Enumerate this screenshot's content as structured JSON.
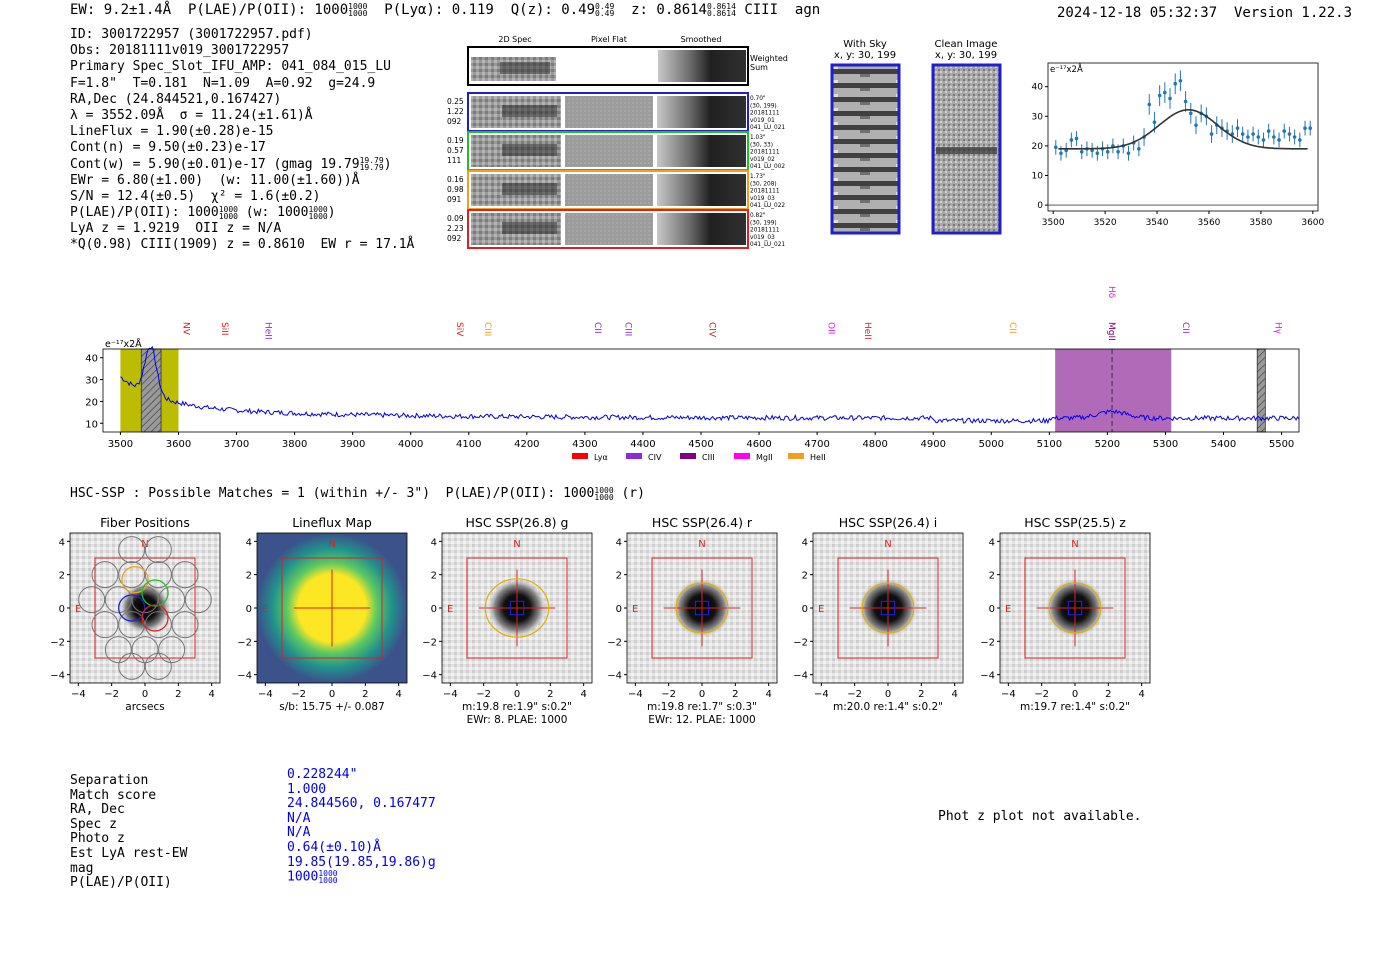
{
  "header": {
    "left": "EW: 9.2±1.4Å  P(LAE)/P(OII): 1000",
    "left_frac": [
      "1000",
      "1000"
    ],
    "left2": "  P(Lyα): 0.119  Q(z): 0.49",
    "q_frac": [
      "0.49",
      "0.49"
    ],
    "left3": "  z: 0.8614",
    "z_frac": [
      "0.8614",
      "0.8614"
    ],
    "left4": " CIII  agn",
    "right": "2024-12-18 05:32:37  Version 1.22.3"
  },
  "info": [
    "ID: 3001722957 (3001722957.pdf)",
    "Obs: 20181111v019_3001722957",
    "Primary Spec_Slot_IFU_AMP: 041_084_015_LU",
    "F=1.8\"  T=0.181  N=1.09  A=0.92  g=24.9",
    "RA,Dec (24.844521,0.167427)",
    "λ = 3552.09Å  σ = 11.24(±1.61)Å",
    "LineFlux = 1.90(±0.28)e-15",
    "Cont(n) = 9.50(±0.23)e-17",
    "Cont(w) = 5.90(±0.01)e-17 (gmag 19.79",
    "EWr = 6.80(±1.00)  (w: 11.00(±1.60))Å",
    "S/N = 12.4(±0.5)  χ² = 1.6(±0.2)",
    "P(LAE)/P(OII): 1000",
    "LyA z = 1.9219  OII z = N/A",
    "*Q(0.98) CIII(1909) z = 0.8610  EW r = 17.1Å"
  ],
  "info_extra": {
    "gmag_frac": [
      "19.79",
      "19.79"
    ],
    "gmag_close": ")",
    "plae_frac": [
      "1000",
      "1000"
    ],
    "plae_w": " (w: 1000",
    "plae_w_frac": [
      "1000",
      "1000"
    ],
    "plae_close": ")"
  },
  "cutouts": {
    "headers": [
      "2D Spec",
      "Pixel Flat",
      "Smoothed"
    ],
    "weighted_label": [
      "Weighted",
      "Sum"
    ],
    "rows": [
      {
        "left": [
          "0.25",
          "1.22",
          "092"
        ],
        "right": [
          "0.70\"",
          "(30, 199)",
          "20181111",
          "v019_01",
          "041_LU_021"
        ],
        "color": "#1f1fd0"
      },
      {
        "left": [
          "0.19",
          "0.57",
          "111"
        ],
        "right": [
          "1.03\"",
          "(30, 33)",
          "20181111",
          "v019_02",
          "041_LU_002"
        ],
        "color": "#22c022"
      },
      {
        "left": [
          "0.16",
          "0.98",
          "091"
        ],
        "right": [
          "1.73\"",
          "(30, 208)",
          "20181111",
          "v019_03",
          "041_LU_022"
        ],
        "color": "#f0a020"
      },
      {
        "left": [
          "0.09",
          "2.23",
          "092"
        ],
        "right": [
          "0.82\"",
          "(30, 199)",
          "20181111",
          "v019_03",
          "041_LU_021"
        ],
        "color": "#e02020"
      }
    ]
  },
  "sky": {
    "with_sky": [
      "With Sky",
      "x, y: 30, 199"
    ],
    "clean": [
      "Clean Image",
      "x, y: 30, 199"
    ]
  },
  "chart_data": [
    {
      "type": "scatter",
      "title": "",
      "ylabel_unit": "e⁻¹⁷x2Å",
      "xlim": [
        3498,
        3602
      ],
      "ylim": [
        -2,
        48
      ],
      "xticks": [
        3500,
        3520,
        3540,
        3560,
        3580,
        3600
      ],
      "yticks": [
        0,
        10,
        20,
        30,
        40
      ],
      "points": [
        {
          "x": 3501,
          "y": 19.5,
          "e": 2.5
        },
        {
          "x": 3503,
          "y": 17.5,
          "e": 2.5
        },
        {
          "x": 3505,
          "y": 18.5,
          "e": 2.5
        },
        {
          "x": 3507,
          "y": 22,
          "e": 2.5
        },
        {
          "x": 3509,
          "y": 22.5,
          "e": 2.5
        },
        {
          "x": 3511,
          "y": 18,
          "e": 2.5
        },
        {
          "x": 3513,
          "y": 19,
          "e": 2.5
        },
        {
          "x": 3515,
          "y": 18.5,
          "e": 2.5
        },
        {
          "x": 3517,
          "y": 17.5,
          "e": 2.5
        },
        {
          "x": 3519,
          "y": 19,
          "e": 2.5
        },
        {
          "x": 3521,
          "y": 18,
          "e": 2.5
        },
        {
          "x": 3523,
          "y": 20,
          "e": 2.5
        },
        {
          "x": 3525,
          "y": 18,
          "e": 2.5
        },
        {
          "x": 3527,
          "y": 20,
          "e": 2.5
        },
        {
          "x": 3529,
          "y": 17.5,
          "e": 2.5
        },
        {
          "x": 3531,
          "y": 21,
          "e": 2.5
        },
        {
          "x": 3533,
          "y": 19,
          "e": 2.5
        },
        {
          "x": 3535,
          "y": 23,
          "e": 3
        },
        {
          "x": 3537,
          "y": 34,
          "e": 3.5
        },
        {
          "x": 3539,
          "y": 28,
          "e": 3.5
        },
        {
          "x": 3541,
          "y": 37,
          "e": 3.5
        },
        {
          "x": 3543,
          "y": 38,
          "e": 3.5
        },
        {
          "x": 3545,
          "y": 36,
          "e": 3.5
        },
        {
          "x": 3547,
          "y": 41,
          "e": 3.5
        },
        {
          "x": 3549,
          "y": 42,
          "e": 3.5
        },
        {
          "x": 3551,
          "y": 35,
          "e": 3.5
        },
        {
          "x": 3553,
          "y": 31,
          "e": 3.5
        },
        {
          "x": 3555,
          "y": 27,
          "e": 3
        },
        {
          "x": 3557,
          "y": 31,
          "e": 3
        },
        {
          "x": 3559,
          "y": 30,
          "e": 3
        },
        {
          "x": 3561,
          "y": 24,
          "e": 3
        },
        {
          "x": 3563,
          "y": 27,
          "e": 3
        },
        {
          "x": 3565,
          "y": 26,
          "e": 3
        },
        {
          "x": 3567,
          "y": 25,
          "e": 3
        },
        {
          "x": 3569,
          "y": 24,
          "e": 3
        },
        {
          "x": 3571,
          "y": 26,
          "e": 3
        },
        {
          "x": 3573,
          "y": 24,
          "e": 2.5
        },
        {
          "x": 3575,
          "y": 23,
          "e": 2.5
        },
        {
          "x": 3577,
          "y": 24,
          "e": 2.5
        },
        {
          "x": 3579,
          "y": 23,
          "e": 2.5
        },
        {
          "x": 3581,
          "y": 22,
          "e": 2.5
        },
        {
          "x": 3583,
          "y": 25,
          "e": 2.5
        },
        {
          "x": 3585,
          "y": 23,
          "e": 2.5
        },
        {
          "x": 3587,
          "y": 22,
          "e": 2.5
        },
        {
          "x": 3589,
          "y": 25,
          "e": 2.5
        },
        {
          "x": 3591,
          "y": 24,
          "e": 2.5
        },
        {
          "x": 3593,
          "y": 23,
          "e": 2.5
        },
        {
          "x": 3595,
          "y": 22,
          "e": 2.5
        },
        {
          "x": 3597,
          "y": 26,
          "e": 2.5
        },
        {
          "x": 3599,
          "y": 26,
          "e": 2.5
        }
      ],
      "fit": {
        "continuum": 19,
        "amplitude": 13.2,
        "center": 3552.09,
        "sigma": 11.24
      }
    },
    {
      "type": "line",
      "title": "",
      "ylabel_unit": "e⁻¹⁷x2Å",
      "xlim": [
        3470,
        5530
      ],
      "ylim": [
        6,
        44
      ],
      "xticks": [
        3500,
        3600,
        3700,
        3800,
        3900,
        4000,
        4100,
        4200,
        4300,
        4400,
        4500,
        4600,
        4700,
        4800,
        4900,
        5000,
        5100,
        5200,
        5300,
        5400,
        5500
      ],
      "yticks": [
        10,
        20,
        30,
        40
      ],
      "spans": [
        {
          "x0": 3500,
          "x1": 3600,
          "color": "#bcbc00"
        },
        {
          "x0": 5110,
          "x1": 5310,
          "color": "#b06ab8"
        }
      ],
      "hatched": [
        {
          "x0": 3536,
          "x1": 3570
        },
        {
          "x0": 5458,
          "x1": 5472
        }
      ],
      "dashed": [
        5208
      ],
      "lines": [
        {
          "label": "NV",
          "x": 3614,
          "color": "#e02020"
        },
        {
          "label": "SiII",
          "x": 3680,
          "color": "#e02020"
        },
        {
          "label": "HeII",
          "x": 3755,
          "color": "#8a2be2"
        },
        {
          "label": "SiV",
          "x": 4085,
          "color": "#e02020"
        },
        {
          "label": "CIII",
          "x": 4133,
          "color": "#f0a020"
        },
        {
          "label": "CII",
          "x": 4323,
          "color": "#8a2be2"
        },
        {
          "label": "CIII",
          "x": 4375,
          "color": "#8a2be2"
        },
        {
          "label": "CIV",
          "x": 4520,
          "color": "#e02020"
        },
        {
          "label": "OII",
          "x": 4725,
          "color": "#e020e0"
        },
        {
          "label": "HeII",
          "x": 4788,
          "color": "#e02020"
        },
        {
          "label": "CII",
          "x": 5037,
          "color": "#f0a020"
        },
        {
          "label": "MgII",
          "x": 5208,
          "color": "#800080"
        },
        {
          "label": "Hδ",
          "x": 5208,
          "color": "#e020e0"
        },
        {
          "label": "CII",
          "x": 5335,
          "color": "#8a2be2"
        },
        {
          "label": "Hγ",
          "x": 5495,
          "color": "#e020e0"
        }
      ],
      "legend": [
        {
          "label": "Lyα",
          "color": "#ff0000"
        },
        {
          "label": "CIV",
          "color": "#8a2be2"
        },
        {
          "label": "CIII",
          "color": "#800080"
        },
        {
          "label": "MgII",
          "color": "#ff00ff"
        },
        {
          "label": "HeII",
          "color": "#f0a020"
        }
      ]
    }
  ],
  "hsc_line": "HSC-SSP : Possible Matches = 1 (within +/- 3\")  P(LAE)/P(OII): 1000",
  "hsc_frac": [
    "1000",
    "1000"
  ],
  "hsc_suffix": " (r)",
  "panels": [
    {
      "title": "Fiber Positions",
      "caption1": "arcsecs",
      "caption2": "",
      "kind": "fiber"
    },
    {
      "title": "Lineflux Map",
      "caption1": "s/b: 15.75 +/- 0.087",
      "caption2": "",
      "kind": "flux"
    },
    {
      "title": "HSC SSP(26.8) g",
      "caption1": "m:19.8  re:1.9\"  s:0.2\"",
      "caption2": "EWr: 8, PLAE: 1000",
      "kind": "img"
    },
    {
      "title": "HSC SSP(26.4) r",
      "caption1": "m:19.8  re:1.7\"  s:0.3\"",
      "caption2": "EWr: 12, PLAE: 1000",
      "kind": "img"
    },
    {
      "title": "HSC SSP(26.4) i",
      "caption1": "m:20.0  re:1.4\"  s:0.2\"",
      "caption2": "",
      "kind": "img"
    },
    {
      "title": "HSC SSP(25.5) z",
      "caption1": "m:19.7  re:1.4\"  s:0.2\"",
      "caption2": "",
      "kind": "img"
    }
  ],
  "panel_axis": {
    "ticks": [
      "−4",
      "−2",
      "0",
      "2",
      "4"
    ],
    "yticks": [
      "4",
      "2",
      "0",
      "−2",
      "−4"
    ],
    "north": "N",
    "east": "E"
  },
  "separation": {
    "labels": [
      "Separation",
      "Match score",
      "RA, Dec",
      "Spec z",
      "Photo z",
      "Est LyA rest-EW",
      "mag",
      "P(LAE)/P(OII)"
    ],
    "values": [
      "0.228244\"",
      "1.000",
      "24.844560, 0.167477",
      "N/A",
      "N/A",
      "0.64(±0.10)Å",
      "19.85(19.85,19.86)g",
      "1000"
    ],
    "plae_frac": [
      "1000",
      "1000"
    ]
  },
  "photz_na": "Phot z plot not available."
}
